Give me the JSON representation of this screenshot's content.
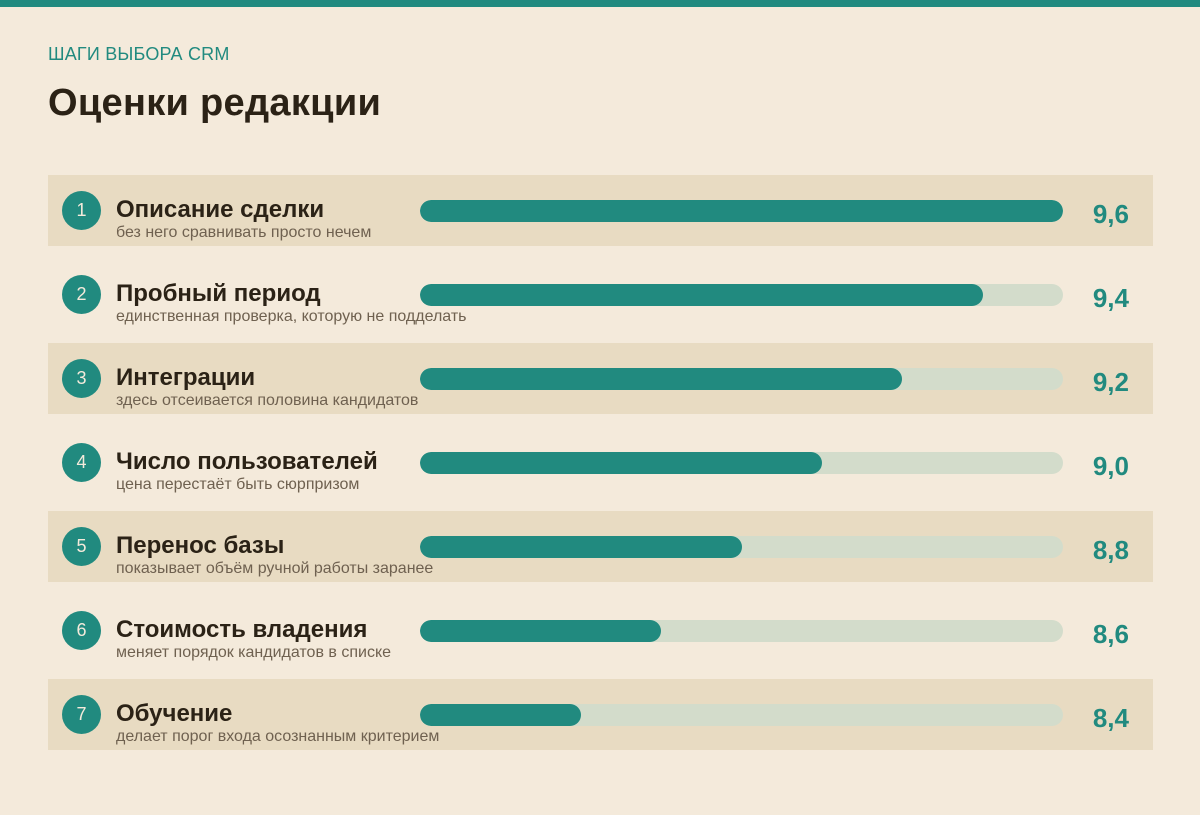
{
  "header": {
    "kicker": "ШАГИ ВЫБОРА CRM",
    "title": "Оценки редакции"
  },
  "colors": {
    "accent": "#218a7f",
    "track": "#d3dccb",
    "background": "#f4eadb",
    "row_shade": "#e8dbc2",
    "text": "#2b2216"
  },
  "chart_data": {
    "type": "bar",
    "orientation": "horizontal",
    "title": "Оценки редакции",
    "subtitle": "ШАГИ ВЫБОРА CRM",
    "xlim": [
      8.0,
      9.6
    ],
    "rows": [
      {
        "rank": "1",
        "label": "Описание сделки",
        "note": "без него сравнивать просто нечем",
        "value": 9.6,
        "value_label": "9,6"
      },
      {
        "rank": "2",
        "label": "Пробный период",
        "note": "единственная проверка, которую не подделать",
        "value": 9.4,
        "value_label": "9,4"
      },
      {
        "rank": "3",
        "label": "Интеграции",
        "note": "здесь отсеивается половина кандидатов",
        "value": 9.2,
        "value_label": "9,2"
      },
      {
        "rank": "4",
        "label": "Число пользователей",
        "note": "цена перестаёт быть сюрпризом",
        "value": 9.0,
        "value_label": "9,0"
      },
      {
        "rank": "5",
        "label": "Перенос базы",
        "note": "показывает объём ручной работы заранее",
        "value": 8.8,
        "value_label": "8,8"
      },
      {
        "rank": "6",
        "label": "Стоимость владения",
        "note": "меняет порядок кандидатов в списке",
        "value": 8.6,
        "value_label": "8,6"
      },
      {
        "rank": "7",
        "label": "Обучение",
        "note": "делает порог входа осознанным критерием",
        "value": 8.4,
        "value_label": "8,4"
      }
    ]
  }
}
